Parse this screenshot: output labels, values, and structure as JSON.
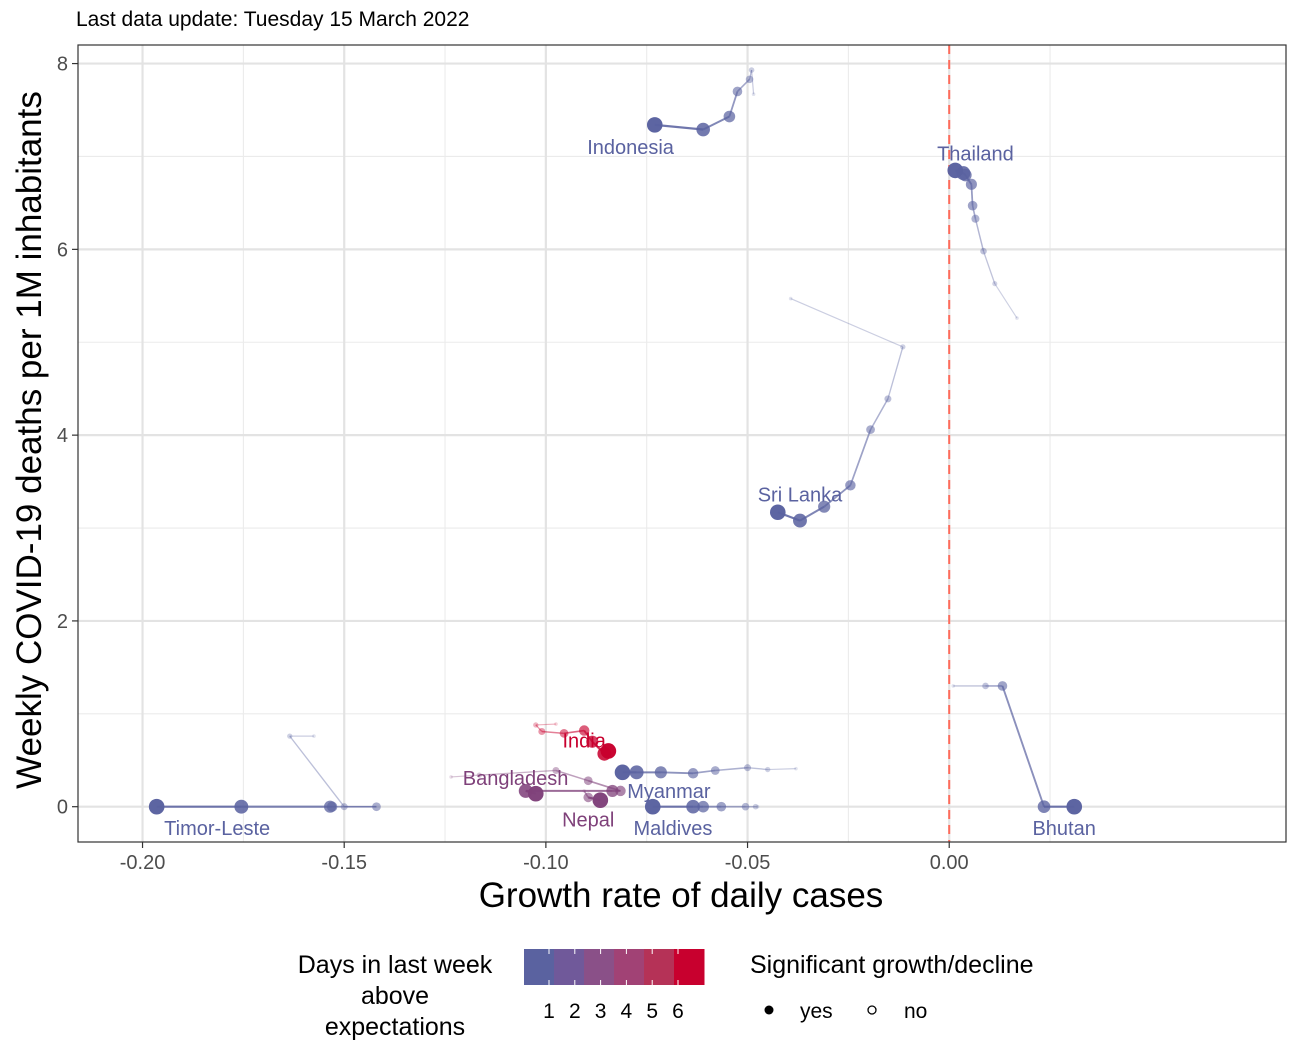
{
  "caption": "Last data update: Tuesday 15 March 2022",
  "chart_data": {
    "type": "scatter",
    "xlabel": "Growth rate of daily cases",
    "ylabel": "Weekly COVID-19 deaths per 1M inhabitants",
    "xlim": [
      -0.216,
      0.0835
    ],
    "ylim": [
      -0.38,
      8.2
    ],
    "x_ticks": [
      -0.2,
      -0.15,
      -0.1,
      -0.05,
      0.0
    ],
    "x_tick_labels": [
      "-0.20",
      "-0.15",
      "-0.10",
      "-0.05",
      "0.00"
    ],
    "y_ticks": [
      0,
      2,
      4,
      6,
      8
    ],
    "y_tick_labels": [
      "0",
      "2",
      "4",
      "6",
      "8"
    ],
    "grid": true,
    "reference_line": {
      "x": 0.0,
      "color": "#ff6b5b",
      "style": "dashed"
    },
    "color_scale": {
      "low": "#5a62a0",
      "high": "#c8002e"
    },
    "series": [
      {
        "name": "Indonesia",
        "color_value": 0,
        "label_pos": [
          -0.079,
          7.1
        ],
        "points": [
          [
            -0.0485,
            7.67
          ],
          [
            -0.049,
            7.93
          ],
          [
            -0.0495,
            7.83
          ],
          [
            -0.0525,
            7.7
          ],
          [
            -0.0545,
            7.43
          ],
          [
            -0.061,
            7.29
          ],
          [
            -0.073,
            7.34
          ]
        ]
      },
      {
        "name": "Thailand",
        "color_value": 0,
        "label_pos": [
          0.0065,
          7.03
        ],
        "points": [
          [
            0.0168,
            5.26
          ],
          [
            0.0113,
            5.63
          ],
          [
            0.0085,
            5.98
          ],
          [
            0.0065,
            6.33
          ],
          [
            0.0058,
            6.47
          ],
          [
            0.0055,
            6.7
          ],
          [
            0.004,
            6.8
          ],
          [
            0.0035,
            6.82
          ],
          [
            0.0015,
            6.85
          ]
        ]
      },
      {
        "name": "Sri Lanka",
        "color_value": 0,
        "label_pos": [
          -0.037,
          3.36
        ],
        "points": [
          [
            -0.0393,
            5.47
          ],
          [
            -0.0115,
            4.95
          ],
          [
            -0.0152,
            4.39
          ],
          [
            -0.0195,
            4.06
          ],
          [
            -0.0245,
            3.46
          ],
          [
            -0.031,
            3.23
          ],
          [
            -0.037,
            3.08
          ],
          [
            -0.0425,
            3.17
          ]
        ]
      },
      {
        "name": "Bhutan",
        "color_value": 0,
        "label_pos": [
          0.0285,
          -0.23
        ],
        "points": [
          [
            0.001,
            1.3
          ],
          [
            0.009,
            1.3
          ],
          [
            0.0132,
            1.3
          ],
          [
            0.0235,
            0.0
          ],
          [
            0.031,
            0.0
          ]
        ]
      },
      {
        "name": "Timor-Leste",
        "color_value": 0,
        "label_pos": [
          -0.1815,
          -0.23
        ],
        "points": [
          [
            -0.1575,
            0.76
          ],
          [
            -0.1635,
            0.76
          ],
          [
            -0.15,
            0.0
          ],
          [
            -0.142,
            0.0
          ],
          [
            -0.153,
            0.0
          ],
          [
            -0.1535,
            0.0
          ],
          [
            -0.1755,
            0.0
          ],
          [
            -0.1965,
            0.0
          ]
        ]
      },
      {
        "name": "Maldives",
        "color_value": 0,
        "label_pos": [
          -0.0685,
          -0.23
        ],
        "points": [
          [
            -0.0475,
            0.0
          ],
          [
            -0.048,
            0.0
          ],
          [
            -0.0505,
            0.0
          ],
          [
            -0.0565,
            0.0
          ],
          [
            -0.061,
            0.0
          ],
          [
            -0.0635,
            0.0
          ],
          [
            -0.0735,
            0.0
          ]
        ]
      },
      {
        "name": "Myanmar",
        "color_value": 0,
        "label_pos": [
          -0.0695,
          0.17
        ],
        "points": [
          [
            -0.038,
            0.41
          ],
          [
            -0.045,
            0.4
          ],
          [
            -0.05,
            0.42
          ],
          [
            -0.058,
            0.39
          ],
          [
            -0.0635,
            0.36
          ],
          [
            -0.0715,
            0.37
          ],
          [
            -0.0775,
            0.37
          ],
          [
            -0.081,
            0.37
          ]
        ]
      },
      {
        "name": "India",
        "color_value": 6,
        "label_pos": [
          -0.0905,
          0.71
        ],
        "points": [
          [
            -0.0975,
            0.89
          ],
          [
            -0.1025,
            0.88
          ],
          [
            -0.101,
            0.81
          ],
          [
            -0.0955,
            0.79
          ],
          [
            -0.0905,
            0.82
          ],
          [
            -0.0885,
            0.7
          ],
          [
            -0.0855,
            0.57
          ],
          [
            -0.0845,
            0.6
          ]
        ]
      },
      {
        "name": "Bangladesh",
        "color_value": 2,
        "label_pos": [
          -0.1075,
          0.31
        ],
        "points": [
          [
            -0.1235,
            0.32
          ],
          [
            -0.1165,
            0.34
          ],
          [
            -0.0975,
            0.39
          ],
          [
            -0.0895,
            0.28
          ],
          [
            -0.0815,
            0.17
          ],
          [
            -0.0835,
            0.17
          ],
          [
            -0.105,
            0.17
          ],
          [
            -0.1025,
            0.14
          ]
        ]
      },
      {
        "name": "Nepal",
        "color_value": 2,
        "label_pos": [
          -0.0895,
          -0.14
        ],
        "points": [
          [
            -0.0905,
            0.17
          ],
          [
            -0.0895,
            0.1
          ],
          [
            -0.0865,
            0.07
          ]
        ]
      }
    ],
    "legend": {
      "color_title": "Days in last week above expectations",
      "color_title_lines": [
        "Days in last week",
        "above",
        "expectations"
      ],
      "color_labels": [
        "1",
        "2",
        "3",
        "4",
        "5",
        "6"
      ],
      "color_steps": [
        "#5a62a0",
        "#70599a",
        "#8a5088",
        "#a14275",
        "#b53257",
        "#c8002e"
      ],
      "shape_title": "Significant growth/decline",
      "shape_labels": [
        "yes",
        "no"
      ]
    }
  }
}
